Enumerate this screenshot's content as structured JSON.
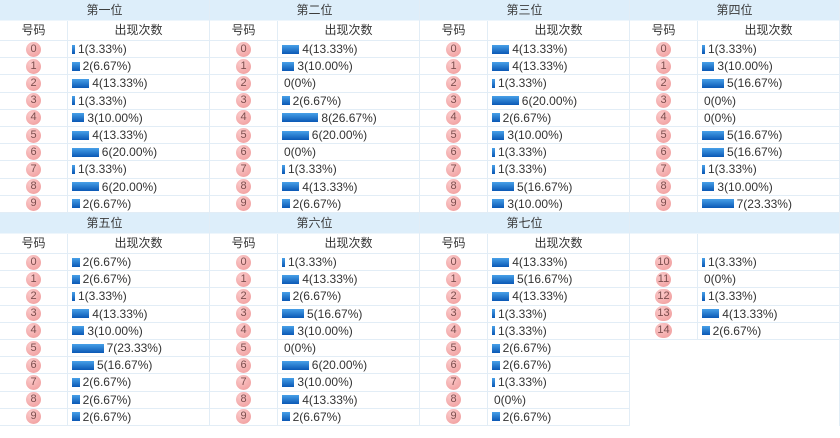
{
  "board": {
    "column_headers": {
      "number": "号码",
      "count": "出现次数"
    }
  },
  "colors": {
    "title_bg": "#ddeefa",
    "row_border": "#e2edf6",
    "bar_gradient_top": "#47a0e8",
    "bar_gradient_bottom": "#0a58b5",
    "badge_bg": "#f2a5a5",
    "badge_text": "#7c4d4d",
    "value_text": "#333333"
  },
  "chart_data": [
    {
      "type": "bar",
      "title": "第一位",
      "xlabel": "号码",
      "ylabel": "出现次数",
      "categories": [
        "0",
        "1",
        "2",
        "3",
        "4",
        "5",
        "6",
        "7",
        "8",
        "9"
      ],
      "values": [
        1,
        2,
        4,
        1,
        3,
        4,
        6,
        1,
        6,
        2
      ],
      "percents": [
        "3.33%",
        "6.67%",
        "13.33%",
        "3.33%",
        "10.00%",
        "13.33%",
        "20.00%",
        "3.33%",
        "20.00%",
        "6.67%"
      ]
    },
    {
      "type": "bar",
      "title": "第二位",
      "xlabel": "号码",
      "ylabel": "出现次数",
      "categories": [
        "0",
        "1",
        "2",
        "3",
        "4",
        "5",
        "6",
        "7",
        "8",
        "9"
      ],
      "values": [
        4,
        3,
        0,
        2,
        8,
        6,
        0,
        1,
        4,
        2
      ],
      "percents": [
        "13.33%",
        "10.00%",
        "0%",
        "6.67%",
        "26.67%",
        "20.00%",
        "0%",
        "3.33%",
        "13.33%",
        "6.67%"
      ]
    },
    {
      "type": "bar",
      "title": "第三位",
      "xlabel": "号码",
      "ylabel": "出现次数",
      "categories": [
        "0",
        "1",
        "2",
        "3",
        "4",
        "5",
        "6",
        "7",
        "8",
        "9"
      ],
      "values": [
        4,
        4,
        1,
        6,
        2,
        3,
        1,
        1,
        5,
        3
      ],
      "percents": [
        "13.33%",
        "13.33%",
        "3.33%",
        "20.00%",
        "6.67%",
        "10.00%",
        "3.33%",
        "3.33%",
        "16.67%",
        "10.00%"
      ]
    },
    {
      "type": "bar",
      "title": "第四位",
      "xlabel": "号码",
      "ylabel": "出现次数",
      "categories": [
        "0",
        "1",
        "2",
        "3",
        "4",
        "5",
        "6",
        "7",
        "8",
        "9"
      ],
      "values": [
        1,
        3,
        5,
        0,
        0,
        5,
        5,
        1,
        3,
        7
      ],
      "percents": [
        "3.33%",
        "10.00%",
        "16.67%",
        "0%",
        "0%",
        "16.67%",
        "16.67%",
        "3.33%",
        "10.00%",
        "23.33%"
      ]
    },
    {
      "type": "bar",
      "title": "第五位",
      "xlabel": "号码",
      "ylabel": "出现次数",
      "categories": [
        "0",
        "1",
        "2",
        "3",
        "4",
        "5",
        "6",
        "7",
        "8",
        "9"
      ],
      "values": [
        2,
        2,
        1,
        4,
        3,
        7,
        5,
        2,
        2,
        2
      ],
      "percents": [
        "6.67%",
        "6.67%",
        "3.33%",
        "13.33%",
        "10.00%",
        "23.33%",
        "16.67%",
        "6.67%",
        "6.67%",
        "6.67%"
      ]
    },
    {
      "type": "bar",
      "title": "第六位",
      "xlabel": "号码",
      "ylabel": "出现次数",
      "categories": [
        "0",
        "1",
        "2",
        "3",
        "4",
        "5",
        "6",
        "7",
        "8",
        "9"
      ],
      "values": [
        1,
        4,
        2,
        5,
        3,
        0,
        6,
        3,
        4,
        2
      ],
      "percents": [
        "3.33%",
        "13.33%",
        "6.67%",
        "16.67%",
        "10.00%",
        "0%",
        "20.00%",
        "10.00%",
        "13.33%",
        "6.67%"
      ]
    },
    {
      "type": "bar",
      "title": "第七位",
      "xlabel": "号码",
      "ylabel": "出现次数",
      "categories": [
        "0",
        "1",
        "2",
        "3",
        "4",
        "5",
        "6",
        "7",
        "8",
        "9"
      ],
      "values": [
        4,
        5,
        4,
        1,
        1,
        2,
        2,
        1,
        0,
        2
      ],
      "percents": [
        "13.33%",
        "16.67%",
        "13.33%",
        "3.33%",
        "3.33%",
        "6.67%",
        "6.67%",
        "3.33%",
        "0%",
        "6.67%"
      ]
    },
    {
      "type": "bar",
      "title": "",
      "xlabel": "号码",
      "ylabel": "出现次数",
      "categories": [
        "10",
        "11",
        "12",
        "13",
        "14"
      ],
      "values": [
        1,
        0,
        1,
        4,
        2
      ],
      "percents": [
        "3.33%",
        "0%",
        "3.33%",
        "13.33%",
        "6.67%"
      ]
    }
  ]
}
